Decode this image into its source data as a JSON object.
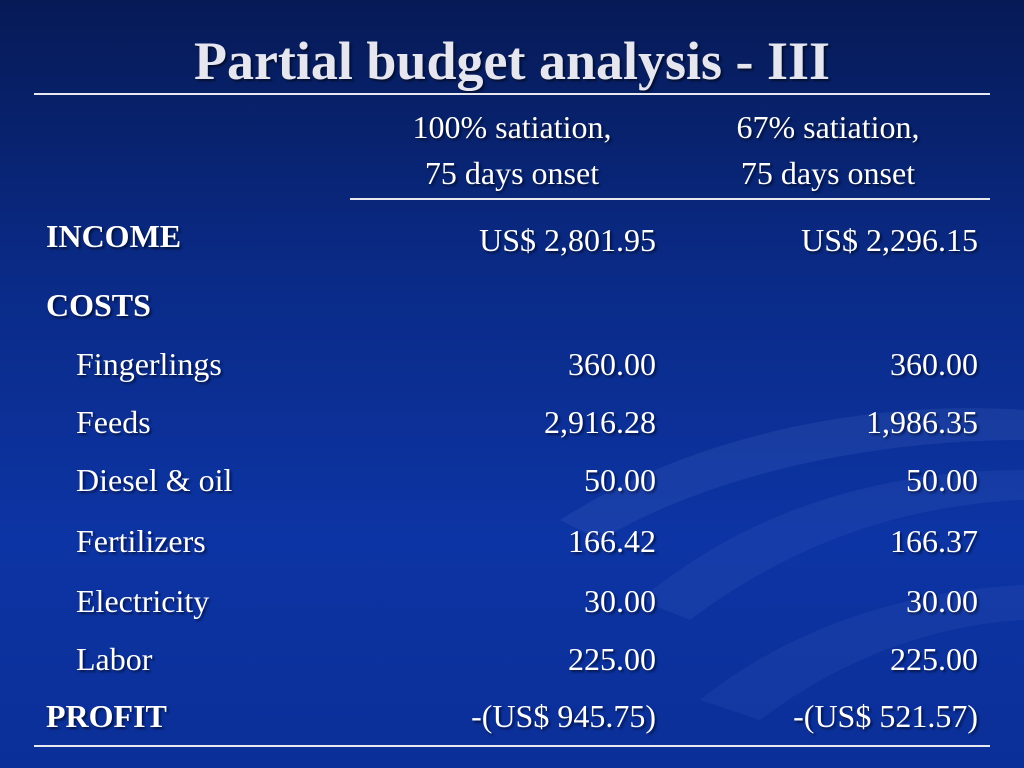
{
  "slide": {
    "title": "Partial budget analysis - III",
    "columns": [
      {
        "line1": "100% satiation,",
        "line2": "75 days onset"
      },
      {
        "line1": "67% satiation,",
        "line2": "75 days onset"
      }
    ],
    "rows": [
      {
        "label": "INCOME",
        "v1": "US$ 2,801.95",
        "v2": "US$ 2,296.15"
      },
      {
        "label": "COSTS",
        "v1": "",
        "v2": ""
      },
      {
        "label": "Fingerlings",
        "v1": "360.00",
        "v2": "360.00"
      },
      {
        "label": "Feeds",
        "v1": "2,916.28",
        "v2": "1,986.35"
      },
      {
        "label": "Diesel & oil",
        "v1": "50.00",
        "v2": "50.00"
      },
      {
        "label": "Fertilizers",
        "v1": "166.42",
        "v2": "166.37"
      },
      {
        "label": "Electricity",
        "v1": "30.00",
        "v2": "30.00"
      },
      {
        "label": "Labor",
        "v1": "225.00",
        "v2": "225.00"
      },
      {
        "label": "PROFIT",
        "v1": "-(US$ 945.75)",
        "v2": "-(US$ 521.57)"
      }
    ]
  },
  "colors": {
    "background_dark": "#061a56",
    "background_mid": "#0d34a4",
    "text": "#ffffff",
    "rule": "#e8e8f0"
  }
}
